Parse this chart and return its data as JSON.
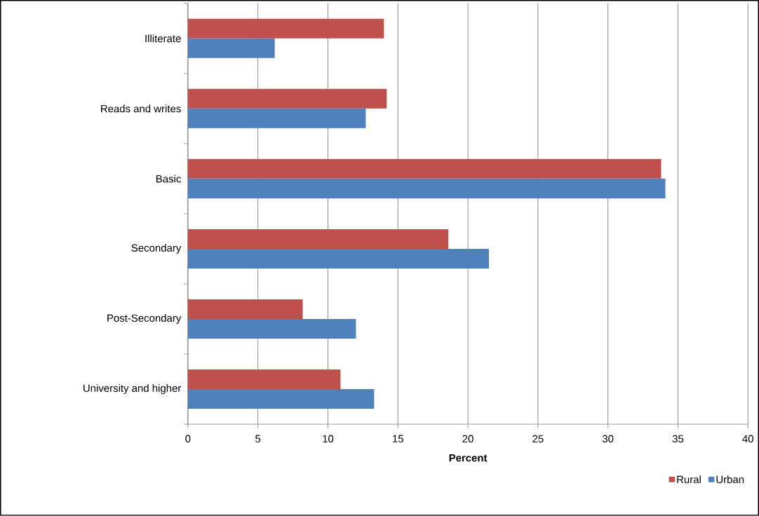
{
  "chart_data": {
    "type": "bar",
    "orientation": "horizontal",
    "xlabel": "Percent",
    "categories": [
      "Illiterate",
      "Reads and writes",
      "Basic",
      "Secondary",
      "Post-Secondary",
      "University and higher"
    ],
    "series": [
      {
        "name": "Rural",
        "color": "#c0504d",
        "values": [
          14.0,
          14.2,
          33.8,
          18.6,
          8.2,
          10.9
        ]
      },
      {
        "name": "Urban",
        "color": "#4f81bd",
        "values": [
          6.2,
          12.7,
          34.1,
          21.5,
          12.0,
          13.3
        ]
      }
    ],
    "xlim": [
      0,
      40
    ],
    "xticks": [
      0,
      5,
      10,
      15,
      20,
      25,
      30,
      35,
      40
    ],
    "grid": "x",
    "legend": "bottom right"
  }
}
